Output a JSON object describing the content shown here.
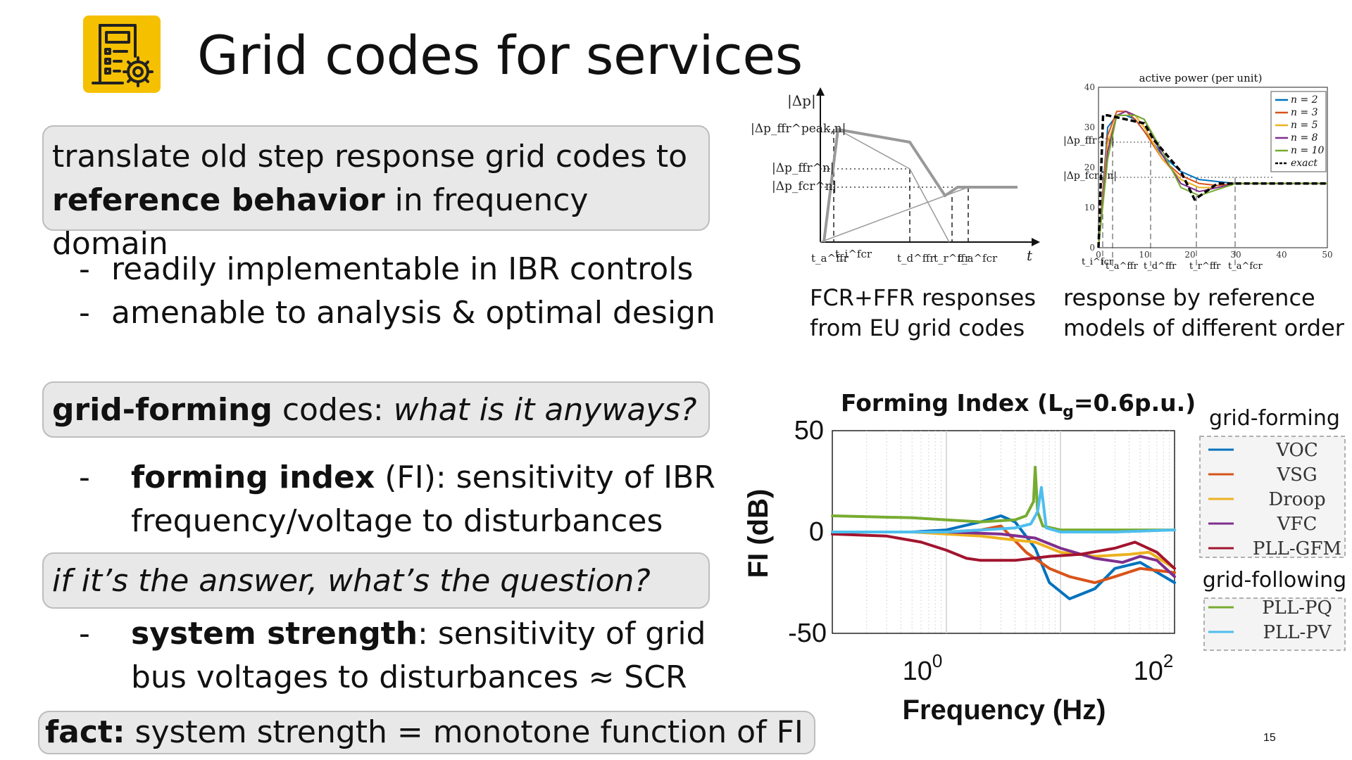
{
  "slide": {
    "title": "Grid codes for services",
    "page_number": "15",
    "icon": "document-gear-icon"
  },
  "box1": {
    "line1": "translate old step response grid codes to",
    "bold": "reference behavior",
    "rest": " in frequency domain"
  },
  "bullets1": [
    {
      "dash": "-",
      "text": "readily implementable in IBR controls"
    },
    {
      "dash": "-",
      "text": "amenable to analysis & optimal design"
    }
  ],
  "box2": {
    "bold": "grid-forming",
    "normal": " codes: ",
    "italic": "what is it anyways?"
  },
  "bullet2": {
    "dash": "-",
    "bold": "forming index",
    "text": " (FI): sensitivity of IBR frequency/voltage to disturbances"
  },
  "box3": {
    "italic": "if it’s the answer, what’s the question?"
  },
  "bullet3": {
    "dash": "-",
    "bold": "system strength",
    "text": ": sensitivity of grid bus voltages to disturbances ≈ SCR"
  },
  "box4": {
    "bold": "fact:",
    "text": " system strength = monotone function of FI"
  },
  "captions": {
    "left": [
      "FCR+FFR responses",
      "from EU grid codes"
    ],
    "right": [
      "response by reference",
      "models of different order"
    ]
  },
  "chart_data": [
    {
      "type": "line",
      "title": "",
      "ylabel": "|Δp|",
      "xlabel": "t",
      "ytick_labels": [
        "|Δp_ffr^peak,n|",
        "|Δp_ffr^n|",
        "|Δp_fcr^n|"
      ],
      "xtick_labels": [
        "t_a^ffr",
        "t_i^fcr",
        "t_d^ffr",
        "t_r^ffr",
        "t_a^fcr"
      ],
      "series": [
        {
          "name": "",
          "x": [
            0.0,
            0.1,
            0.46,
            0.62,
            0.7,
            1.0
          ],
          "y": [
            0.0,
            1.0,
            0.85,
            0.45,
            0.55,
            0.55
          ],
          "style": "thick"
        },
        {
          "name": "",
          "x": [
            0.05,
            0.46,
            0.63
          ],
          "y": [
            0.95,
            0.72,
            0.0
          ],
          "style": "thin"
        },
        {
          "name": "",
          "x": [
            0.0,
            0.74
          ],
          "y": [
            0.0,
            0.55
          ],
          "style": "thin"
        }
      ],
      "colors": {
        "thick": "#999999",
        "thin": "#999999"
      }
    },
    {
      "type": "line",
      "title": "active power (per unit)",
      "xlim": [
        0,
        50
      ],
      "ylim": [
        0,
        40
      ],
      "x_ticks": [
        0,
        10,
        20,
        30,
        40,
        50
      ],
      "y_ticks": [
        0,
        10,
        20,
        30,
        40
      ],
      "y_annotations": [
        "|Δp_ffr^n|",
        "|Δp_fcr^n|"
      ],
      "x_annotations": [
        "t_i^fcr",
        "t_a^ffr",
        "t_d^ffr",
        "t_r^ffr",
        "t_a^fcr"
      ],
      "legend_position": "top-right",
      "series": [
        {
          "name": "n = 2",
          "color": "#0072bd",
          "x": [
            0,
            2,
            4,
            6,
            8,
            10,
            14,
            18,
            22,
            26,
            30,
            40,
            50
          ],
          "y": [
            0,
            30,
            33,
            33,
            32,
            29,
            23,
            19,
            17,
            16.5,
            16,
            16,
            16
          ]
        },
        {
          "name": "n = 3",
          "color": "#d95319",
          "x": [
            0,
            2,
            4,
            6,
            8,
            10,
            14,
            18,
            22,
            26,
            30,
            40,
            50
          ],
          "y": [
            0,
            28,
            34,
            34,
            32,
            29,
            22,
            18,
            16,
            15.5,
            16,
            16,
            16
          ]
        },
        {
          "name": "n = 5",
          "color": "#edb120",
          "x": [
            0,
            2,
            4,
            6,
            8,
            10,
            14,
            18,
            22,
            26,
            30,
            40,
            50
          ],
          "y": [
            0,
            26,
            33,
            34,
            33,
            30,
            22,
            17,
            15,
            15,
            16,
            16,
            16
          ]
        },
        {
          "name": "n = 8",
          "color": "#7e2f8e",
          "x": [
            0,
            2,
            4,
            6,
            8,
            10,
            14,
            18,
            22,
            26,
            30,
            40,
            50
          ],
          "y": [
            0,
            24,
            33,
            34,
            33,
            32,
            23,
            16,
            14,
            15,
            16,
            16,
            16
          ]
        },
        {
          "name": "n = 10",
          "color": "#77ac30",
          "x": [
            0,
            2,
            4,
            6,
            8,
            10,
            14,
            18,
            22,
            26,
            30,
            40,
            50
          ],
          "y": [
            0,
            22,
            33,
            33,
            33,
            32,
            24,
            15,
            13,
            14.5,
            16,
            16,
            16
          ]
        },
        {
          "name": "exact",
          "color": "#000000",
          "dashed": true,
          "x": [
            0,
            1,
            2,
            10,
            12,
            18,
            21,
            26,
            30,
            50
          ],
          "y": [
            0,
            33,
            33,
            31,
            27,
            19,
            12,
            16,
            16,
            16
          ]
        }
      ]
    },
    {
      "type": "line",
      "title": "Forming Index (Lg=0.6p.u.)",
      "title_main": "Forming Index (L",
      "title_sub": "g",
      "title_tail": "=0.6p.u.)",
      "xlabel": "Frequency (Hz)",
      "ylabel": "FI (dB)",
      "x_scale": "log",
      "xlim": [
        0.1,
        100
      ],
      "ylim": [
        -50,
        50
      ],
      "y_ticks": [
        "50",
        "0",
        "-50"
      ],
      "x_ticks": [
        "10",
        "10"
      ],
      "x_tick_exponents": [
        "0",
        "2"
      ],
      "legend_groups": [
        "grid-forming",
        "grid-following"
      ],
      "series": [
        {
          "name": "VOC",
          "group": "grid-forming",
          "color": "#0072bd",
          "x": [
            0.1,
            0.5,
            1,
            2,
            3,
            4,
            6,
            8,
            12,
            20,
            30,
            50,
            100
          ],
          "y": [
            0,
            0,
            1,
            5,
            8,
            5,
            -8,
            -25,
            -33,
            -28,
            -18,
            -15,
            -25
          ]
        },
        {
          "name": "VSG",
          "group": "grid-forming",
          "color": "#d95319",
          "x": [
            0.1,
            0.5,
            1,
            2,
            3,
            5,
            8,
            12,
            20,
            30,
            50,
            100
          ],
          "y": [
            0,
            0,
            0,
            1,
            3,
            -10,
            -18,
            -22,
            -25,
            -22,
            -18,
            -20
          ]
        },
        {
          "name": "Droop",
          "group": "grid-forming",
          "color": "#edb120",
          "x": [
            0.1,
            0.5,
            1,
            2,
            4,
            6,
            10,
            20,
            40,
            60,
            100
          ],
          "y": [
            0,
            0,
            -1,
            -2,
            -4,
            -5,
            -10,
            -12,
            -11,
            -10,
            -18
          ]
        },
        {
          "name": "VFC",
          "group": "grid-forming",
          "color": "#7e2f8e",
          "x": [
            0.1,
            0.5,
            1,
            3,
            6,
            10,
            20,
            35,
            50,
            70,
            100
          ],
          "y": [
            0,
            0,
            0,
            -1,
            -3,
            -8,
            -13,
            -15,
            -12,
            -14,
            -22
          ]
        },
        {
          "name": "PLL-GFM",
          "group": "grid-forming",
          "color": "#a2142f",
          "x": [
            0.1,
            0.3,
            0.6,
            1,
            1.5,
            2,
            4,
            8,
            15,
            30,
            45,
            70,
            100
          ],
          "y": [
            -1,
            -2,
            -5,
            -9,
            -13,
            -14,
            -14,
            -12,
            -11,
            -8,
            -5,
            -10,
            -18
          ]
        },
        {
          "name": "PLL-PQ",
          "group": "grid-following",
          "color": "#77ac30",
          "x": [
            0.1,
            0.5,
            1,
            2,
            4,
            5,
            5.8,
            6,
            6.3,
            7,
            10,
            30,
            100
          ],
          "y": [
            8,
            7,
            6,
            5,
            6,
            8,
            15,
            32,
            10,
            3,
            1,
            1,
            1
          ]
        },
        {
          "name": "PLL-PV",
          "group": "grid-following",
          "color": "#4dbeee",
          "x": [
            0.1,
            0.5,
            1,
            2,
            4,
            5.5,
            6.3,
            6.8,
            7.5,
            10,
            30,
            100
          ],
          "y": [
            0,
            0,
            0,
            1,
            2,
            4,
            10,
            22,
            2,
            0,
            0,
            1
          ]
        }
      ]
    }
  ]
}
